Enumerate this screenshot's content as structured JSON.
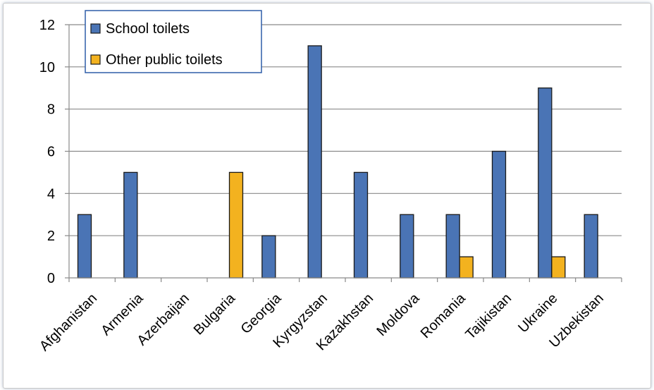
{
  "chart_data": {
    "type": "bar",
    "categories": [
      "Afghanistan",
      "Armenia",
      "Azerbaijan",
      "Bulgaria",
      "Georgia",
      "Kyrgyzstan",
      "Kazakhstan",
      "Moldova",
      "Romania",
      "Tajikistan",
      "Ukraine",
      "Uzbekistan"
    ],
    "series": [
      {
        "name": "School toilets",
        "color": "#4a74b5",
        "values": [
          3,
          5,
          0,
          0,
          2,
          11,
          5,
          3,
          3,
          6,
          9,
          3
        ]
      },
      {
        "name": "Other public toilets",
        "color": "#f3b21f",
        "values": [
          0,
          0,
          0,
          5,
          0,
          0,
          0,
          0,
          1,
          0,
          1,
          0
        ]
      }
    ],
    "ylim": [
      0,
      12
    ],
    "yticks": [
      "0",
      "2",
      "4",
      "6",
      "8",
      "10",
      "12"
    ],
    "grid": true,
    "legend_position": "top-left"
  }
}
